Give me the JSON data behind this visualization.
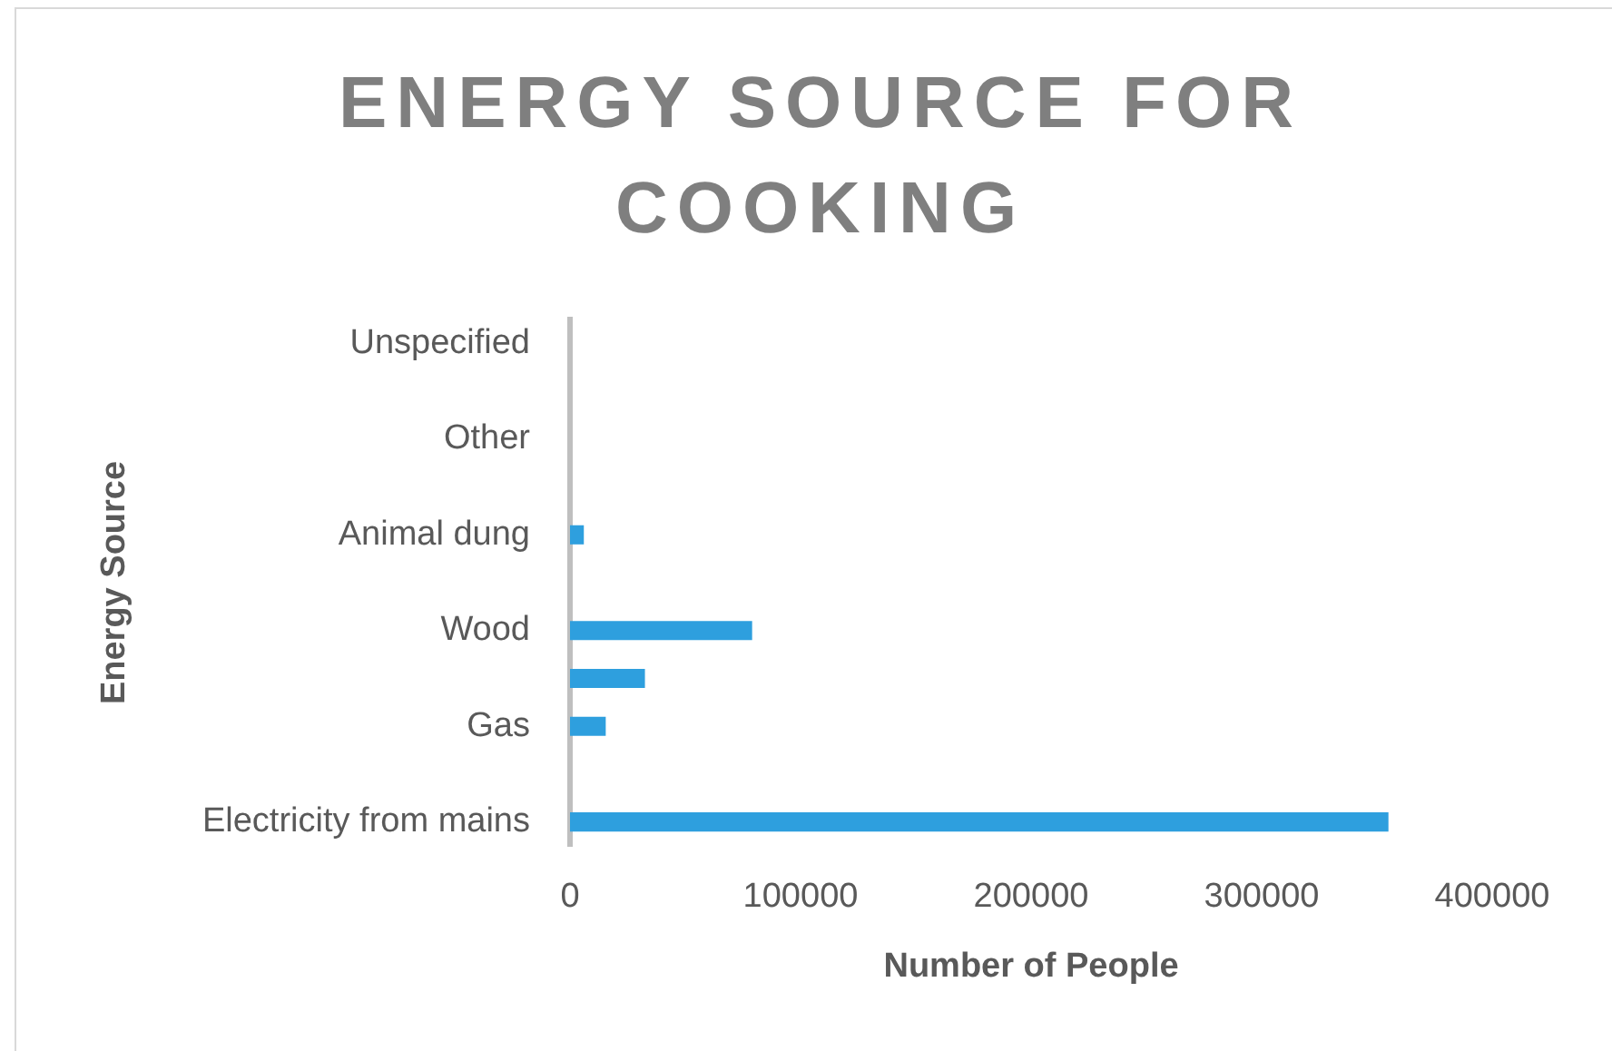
{
  "chart_data": {
    "type": "bar",
    "orientation": "horizontal",
    "title": "ENERGY SOURCE FOR COOKING",
    "xlabel": "Number of People",
    "ylabel": "Energy Source",
    "categories": [
      "Unspecified",
      null,
      "Other",
      null,
      "Animal dung",
      null,
      "Wood",
      null,
      "Gas",
      null,
      "Electricity from mains"
    ],
    "values": [
      0,
      0,
      0,
      0,
      6000,
      0,
      79000,
      32500,
      15500,
      0,
      355000
    ],
    "color": "#2e9fde",
    "xlim": [
      0,
      400000
    ],
    "xticks": [
      0,
      100000,
      200000,
      300000,
      400000
    ]
  }
}
